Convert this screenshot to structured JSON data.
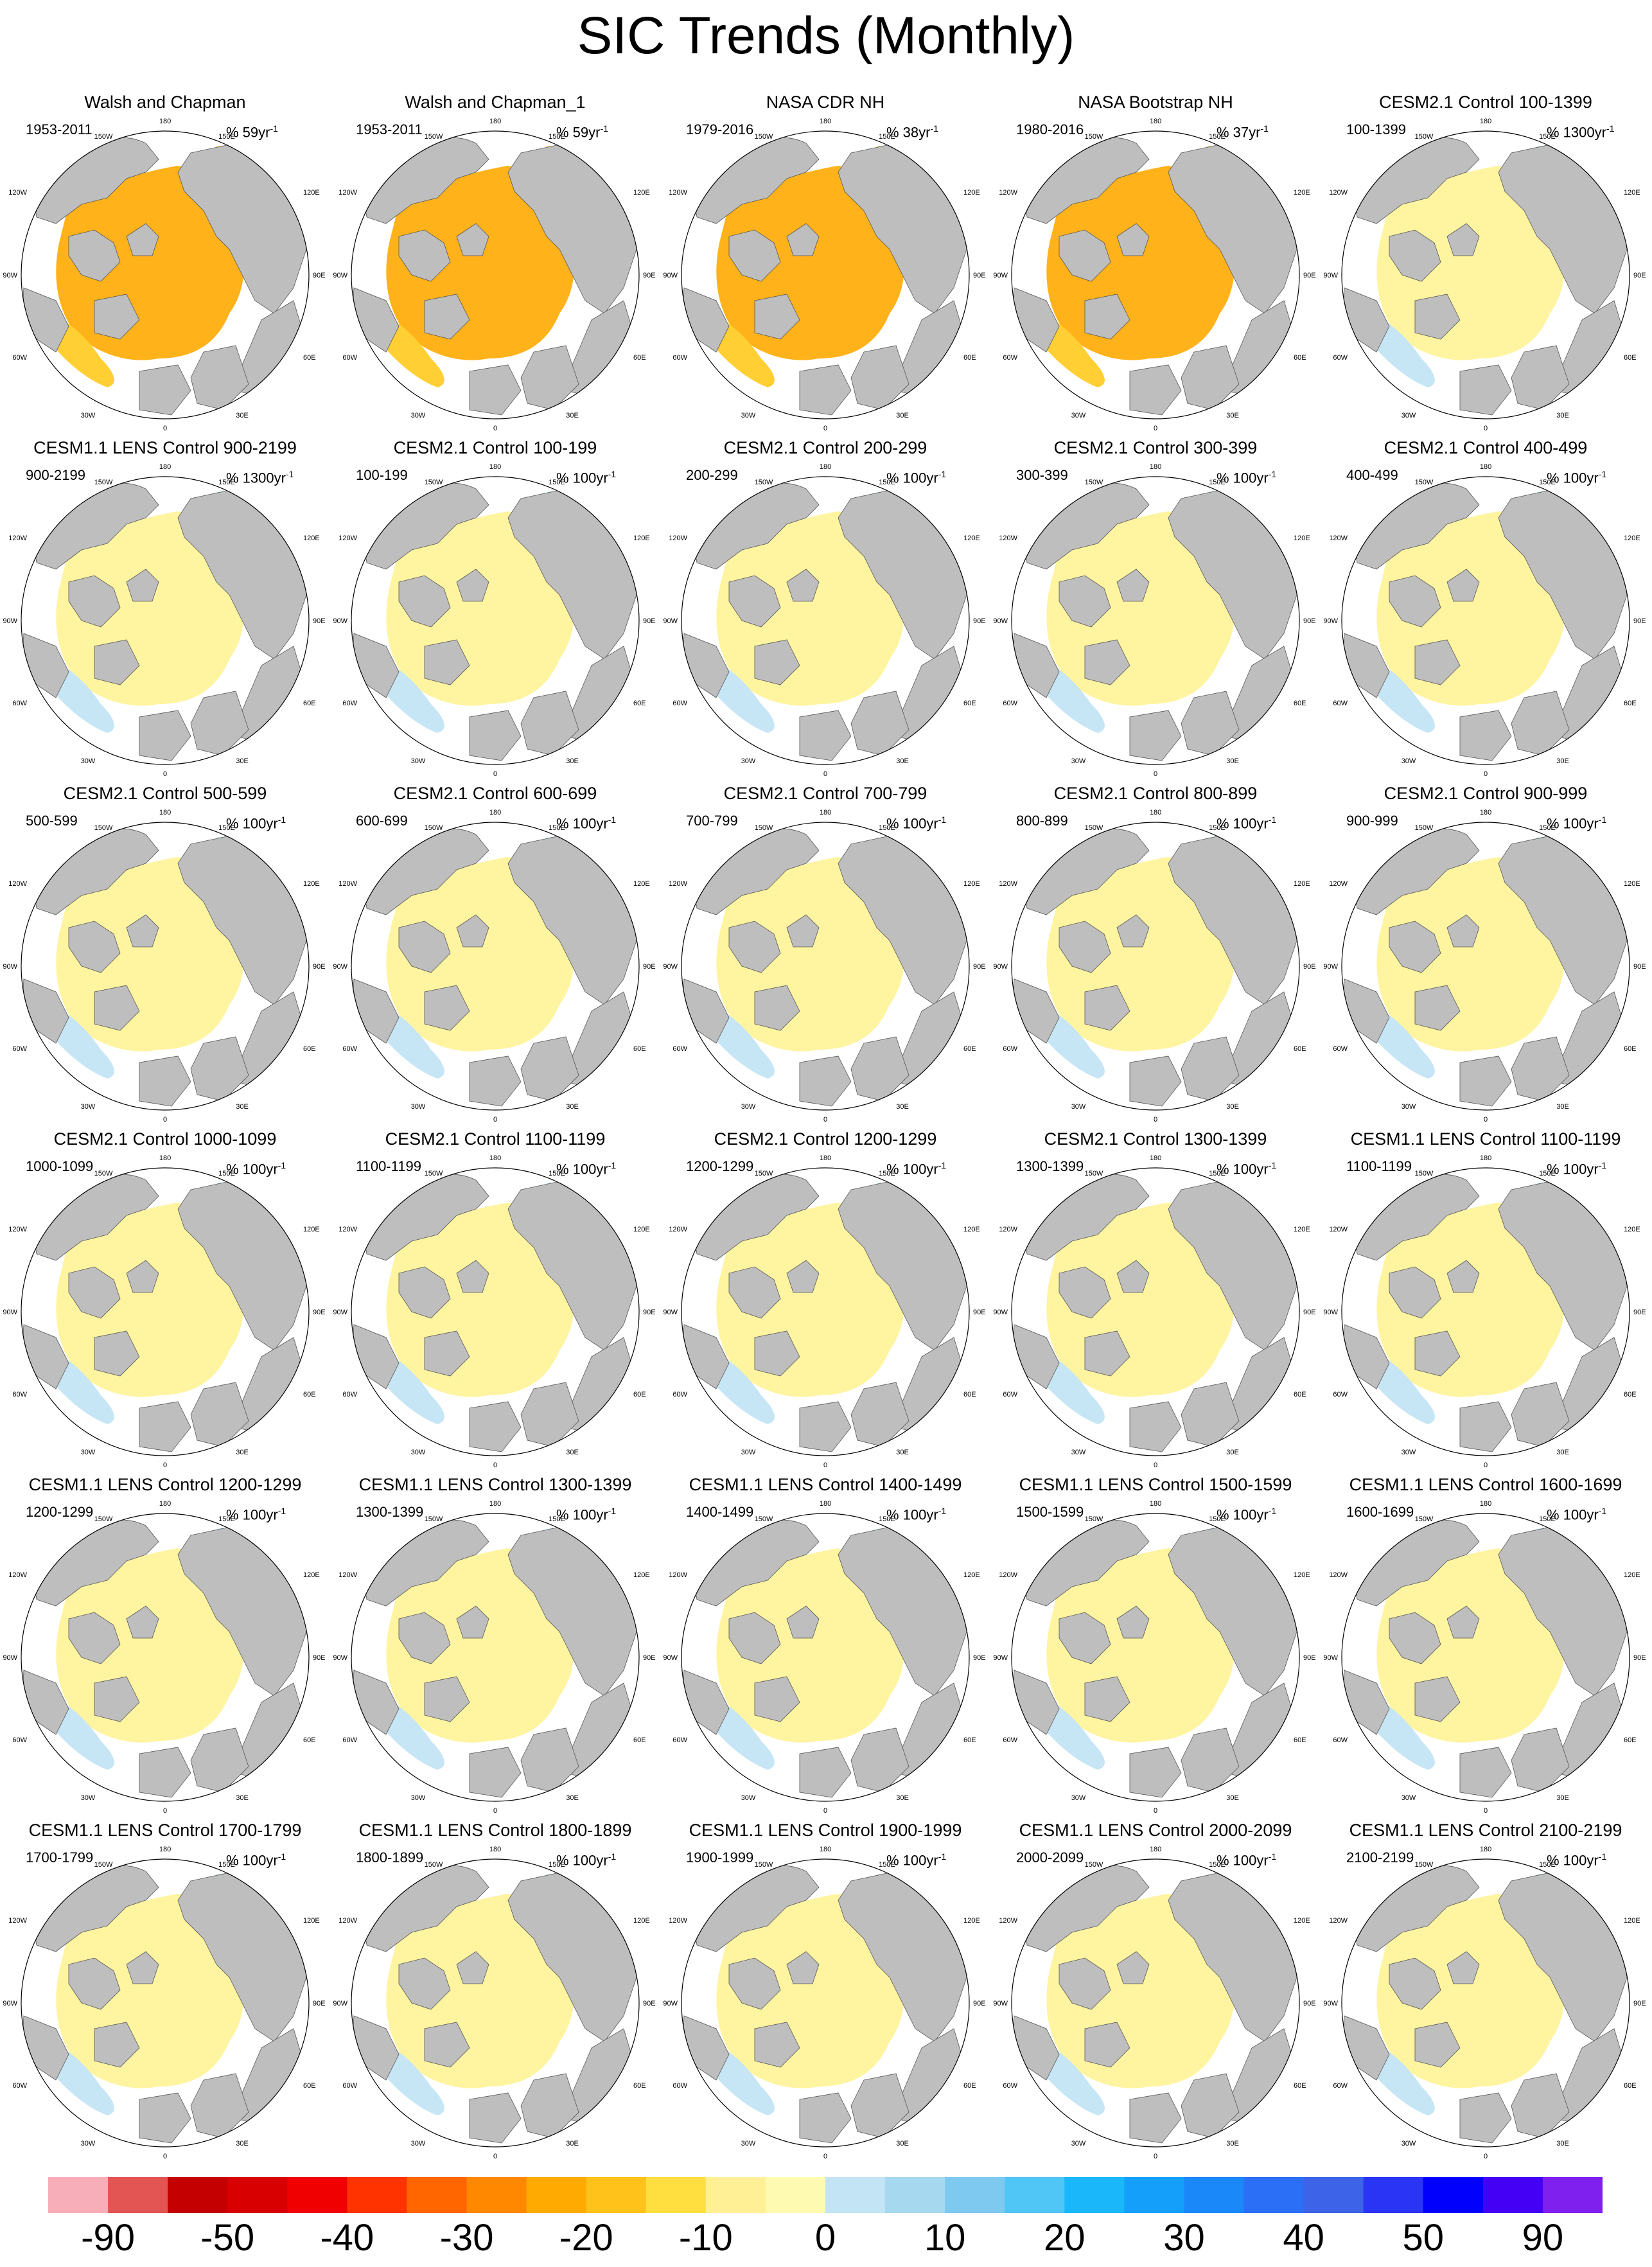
{
  "title": "SIC Trends (Monthly)",
  "longitude_labels": {
    "top": "180",
    "upper_left": "150W",
    "upper_right": "150E",
    "left_upper": "120W",
    "right_upper": "120E",
    "left": "90W",
    "right": "90E",
    "left_lower": "60W",
    "right_lower": "60E",
    "lower_left": "30W",
    "lower_right": "30E",
    "bottom": "0"
  },
  "chart_data": {
    "type": "heatmap",
    "projection": "north polar stereographic",
    "layout": {
      "rows": 6,
      "columns": 5
    },
    "panels": [
      {
        "title": "Walsh and Chapman",
        "period": "1953-2011",
        "unit": "% 59yr",
        "exp": "-1"
      },
      {
        "title": "Walsh and Chapman_1",
        "period": "1953-2011",
        "unit": "% 59yr",
        "exp": "-1"
      },
      {
        "title": "NASA CDR NH",
        "period": "1979-2016",
        "unit": "% 38yr",
        "exp": "-1"
      },
      {
        "title": "NASA Bootstrap NH",
        "period": "1980-2016",
        "unit": "% 37yr",
        "exp": "-1"
      },
      {
        "title": "CESM2.1 Control 100-1399",
        "period": "100-1399",
        "unit": "% 1300yr",
        "exp": "-1"
      },
      {
        "title": "CESM1.1 LENS Control 900-2199",
        "period": "900-2199",
        "unit": "% 1300yr",
        "exp": "-1"
      },
      {
        "title": "CESM2.1 Control 100-199",
        "period": "100-199",
        "unit": "% 100yr",
        "exp": "-1"
      },
      {
        "title": "CESM2.1 Control 200-299",
        "period": "200-299",
        "unit": "% 100yr",
        "exp": "-1"
      },
      {
        "title": "CESM2.1 Control 300-399",
        "period": "300-399",
        "unit": "% 100yr",
        "exp": "-1"
      },
      {
        "title": "CESM2.1 Control 400-499",
        "period": "400-499",
        "unit": "% 100yr",
        "exp": "-1"
      },
      {
        "title": "CESM2.1 Control 500-599",
        "period": "500-599",
        "unit": "% 100yr",
        "exp": "-1"
      },
      {
        "title": "CESM2.1 Control 600-699",
        "period": "600-699",
        "unit": "% 100yr",
        "exp": "-1"
      },
      {
        "title": "CESM2.1 Control 700-799",
        "period": "700-799",
        "unit": "% 100yr",
        "exp": "-1"
      },
      {
        "title": "CESM2.1 Control 800-899",
        "period": "800-899",
        "unit": "% 100yr",
        "exp": "-1"
      },
      {
        "title": "CESM2.1 Control 900-999",
        "period": "900-999",
        "unit": "% 100yr",
        "exp": "-1"
      },
      {
        "title": "CESM2.1 Control 1000-1099",
        "period": "1000-1099",
        "unit": "% 100yr",
        "exp": "-1"
      },
      {
        "title": "CESM2.1 Control 1100-1199",
        "period": "1100-1199",
        "unit": "% 100yr",
        "exp": "-1"
      },
      {
        "title": "CESM2.1 Control 1200-1299",
        "period": "1200-1299",
        "unit": "% 100yr",
        "exp": "-1"
      },
      {
        "title": "CESM2.1 Control 1300-1399",
        "period": "1300-1399",
        "unit": "% 100yr",
        "exp": "-1"
      },
      {
        "title": "CESM1.1 LENS Control 1100-1199",
        "period": "1100-1199",
        "unit": "% 100yr",
        "exp": "-1"
      },
      {
        "title": "CESM1.1 LENS Control 1200-1299",
        "period": "1200-1299",
        "unit": "% 100yr",
        "exp": "-1"
      },
      {
        "title": "CESM1.1 LENS Control 1300-1399",
        "period": "1300-1399",
        "unit": "% 100yr",
        "exp": "-1"
      },
      {
        "title": "CESM1.1 LENS Control 1400-1499",
        "period": "1400-1499",
        "unit": "% 100yr",
        "exp": "-1"
      },
      {
        "title": "CESM1.1 LENS Control 1500-1599",
        "period": "1500-1599",
        "unit": "% 100yr",
        "exp": "-1"
      },
      {
        "title": "CESM1.1 LENS Control 1600-1699",
        "period": "1600-1699",
        "unit": "% 100yr",
        "exp": "-1"
      },
      {
        "title": "CESM1.1 LENS Control 1700-1799",
        "period": "1700-1799",
        "unit": "% 100yr",
        "exp": "-1"
      },
      {
        "title": "CESM1.1 LENS Control 1800-1899",
        "period": "1800-1899",
        "unit": "% 100yr",
        "exp": "-1"
      },
      {
        "title": "CESM1.1 LENS Control 1900-1999",
        "period": "1900-1999",
        "unit": "% 100yr",
        "exp": "-1"
      },
      {
        "title": "CESM1.1 LENS Control 2000-2099",
        "period": "2000-2099",
        "unit": "% 100yr",
        "exp": "-1"
      },
      {
        "title": "CESM1.1 LENS Control 2100-2199",
        "period": "2100-2199",
        "unit": "% 100yr",
        "exp": "-1"
      }
    ],
    "colorbar": {
      "colors": [
        "#f8aeb8",
        "#e25552",
        "#c40000",
        "#d80000",
        "#f00000",
        "#ff3300",
        "#ff6600",
        "#ff8800",
        "#ffaa00",
        "#ffc21a",
        "#ffdf40",
        "#fff096",
        "#fffab2",
        "#c2e4f5",
        "#a6d8f0",
        "#7ec9f0",
        "#4fc6f5",
        "#1ab8fb",
        "#149ffb",
        "#1b88fa",
        "#2a6ff5",
        "#3d63e8",
        "#2a34f4",
        "#0000fc",
        "#4400f5",
        "#8020ee"
      ],
      "tick_labels": [
        "-90",
        "-50",
        "-40",
        "-30",
        "-20",
        "-10",
        "0",
        "10",
        "20",
        "30",
        "40",
        "50",
        "90"
      ]
    },
    "land_color": "#bebebe",
    "ocean_color": "#ffffff"
  }
}
